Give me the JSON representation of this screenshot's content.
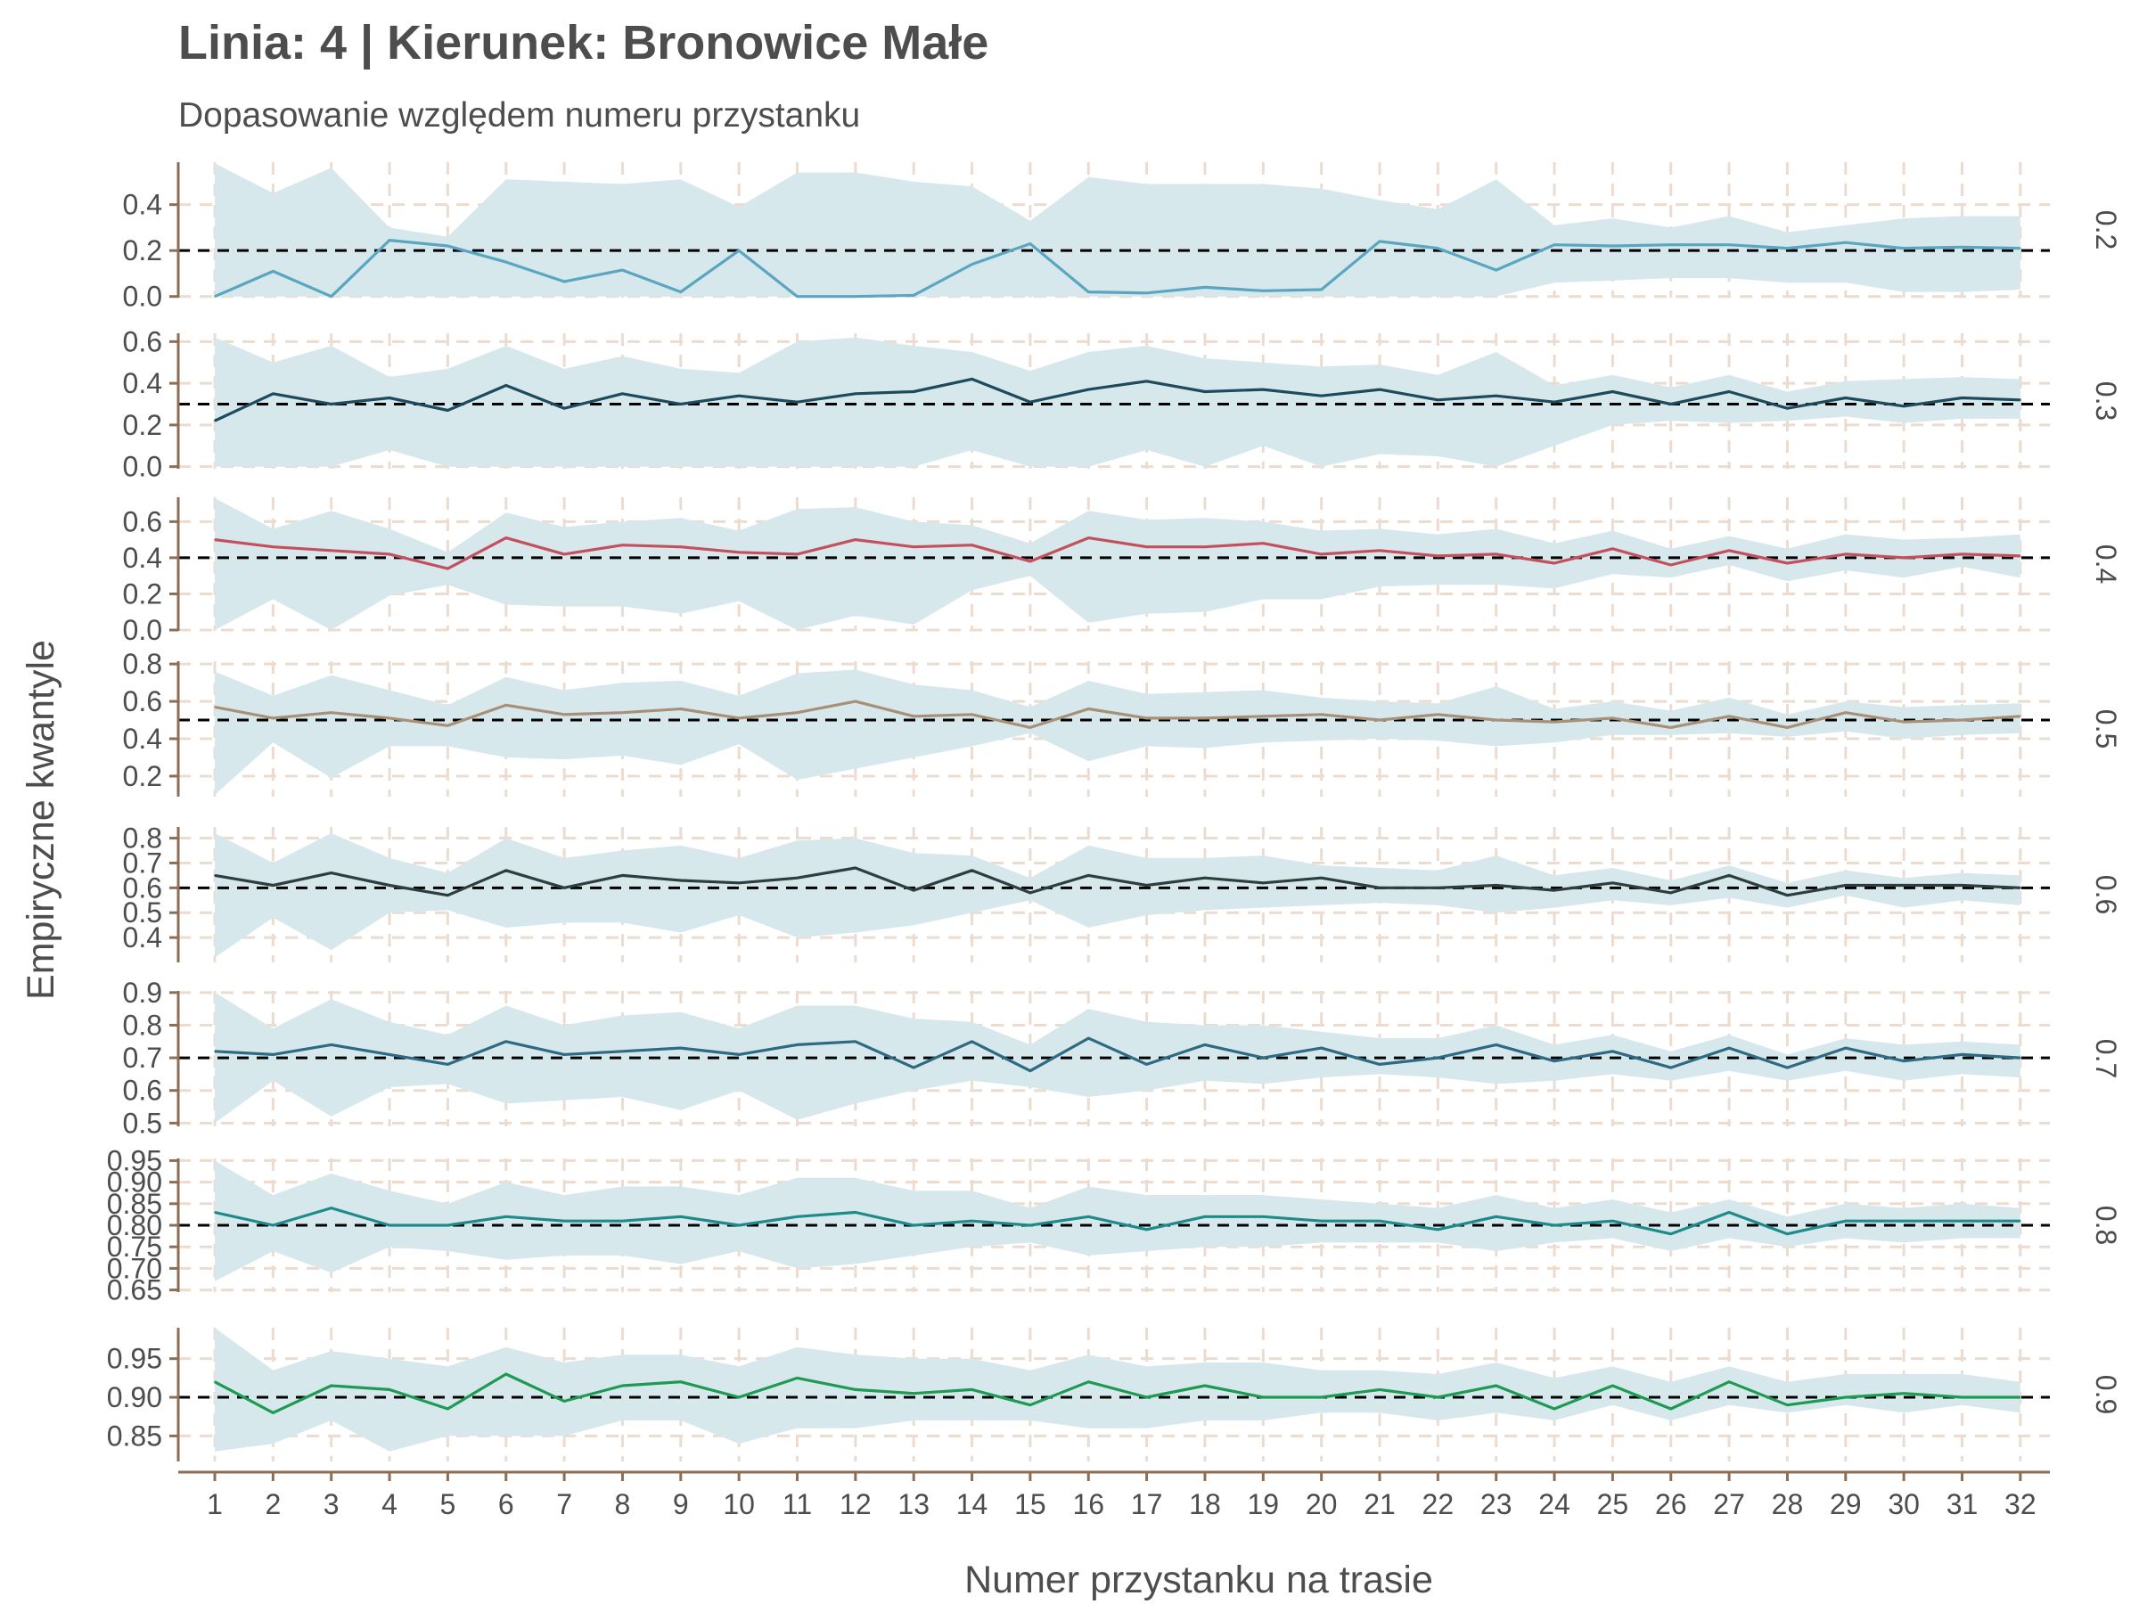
{
  "title": "Linia: 4 | Kierunek: Bronowice Małe",
  "subtitle": "Dopasowanie względem numeru przystanku",
  "colors": {
    "band": "#d6e8ec",
    "axis": "#8b6e55",
    "grid": "#ecdcd0",
    "reference": "#000000",
    "text": "#4d4d4d"
  },
  "chart_data": {
    "type": "line",
    "xlabel": "Numer przystanku na trasie",
    "ylabel": "Empiryczne kwantyle",
    "x": [
      1,
      2,
      3,
      4,
      5,
      6,
      7,
      8,
      9,
      10,
      11,
      12,
      13,
      14,
      15,
      16,
      17,
      18,
      19,
      20,
      21,
      22,
      23,
      24,
      25,
      26,
      27,
      28,
      29,
      30,
      31,
      32
    ],
    "panels": [
      {
        "name": "0.2",
        "reference": 0.2,
        "color": "#5aa6c0",
        "ylim": [
          -0.005,
          0.585
        ],
        "yticks": [
          "0.0",
          "0.2",
          "0.4"
        ],
        "values": [
          0.0,
          0.11,
          0.0,
          0.245,
          0.22,
          0.15,
          0.065,
          0.115,
          0.02,
          0.2,
          0.0,
          0.0,
          0.005,
          0.14,
          0.23,
          0.02,
          0.015,
          0.04,
          0.025,
          0.03,
          0.24,
          0.21,
          0.115,
          0.225,
          0.22,
          0.225,
          0.225,
          0.21,
          0.235,
          0.21,
          0.215,
          0.21
        ],
        "lower": [
          0.0,
          0.0,
          0.0,
          0.0,
          0.0,
          0.0,
          0.0,
          0.0,
          0.0,
          0.0,
          0.0,
          0.0,
          0.0,
          0.0,
          0.0,
          0.0,
          0.0,
          0.0,
          0.0,
          0.0,
          0.0,
          0.0,
          0.0,
          0.06,
          0.07,
          0.08,
          0.08,
          0.06,
          0.06,
          0.02,
          0.02,
          0.03
        ],
        "upper": [
          0.58,
          0.45,
          0.56,
          0.3,
          0.26,
          0.51,
          0.5,
          0.49,
          0.51,
          0.39,
          0.54,
          0.54,
          0.5,
          0.48,
          0.33,
          0.52,
          0.49,
          0.49,
          0.49,
          0.47,
          0.42,
          0.38,
          0.51,
          0.31,
          0.34,
          0.3,
          0.35,
          0.28,
          0.31,
          0.34,
          0.35,
          0.35
        ]
      },
      {
        "name": "0.3",
        "reference": 0.3,
        "color": "#1e4a5c",
        "ylim": [
          -0.01,
          0.64
        ],
        "yticks": [
          "0.0",
          "0.2",
          "0.4",
          "0.6"
        ],
        "values": [
          0.22,
          0.35,
          0.3,
          0.33,
          0.27,
          0.39,
          0.28,
          0.35,
          0.3,
          0.34,
          0.31,
          0.35,
          0.36,
          0.42,
          0.31,
          0.37,
          0.41,
          0.36,
          0.37,
          0.34,
          0.37,
          0.32,
          0.34,
          0.31,
          0.36,
          0.3,
          0.36,
          0.28,
          0.33,
          0.29,
          0.33,
          0.32
        ],
        "lower": [
          0.0,
          0.0,
          0.0,
          0.08,
          0.0,
          0.0,
          0.0,
          0.0,
          0.0,
          0.0,
          0.0,
          0.0,
          0.0,
          0.08,
          0.0,
          0.0,
          0.08,
          0.0,
          0.1,
          0.0,
          0.06,
          0.05,
          0.0,
          0.1,
          0.2,
          0.22,
          0.21,
          0.22,
          0.24,
          0.21,
          0.23,
          0.23
        ],
        "upper": [
          0.62,
          0.5,
          0.58,
          0.43,
          0.47,
          0.58,
          0.47,
          0.53,
          0.47,
          0.45,
          0.6,
          0.62,
          0.58,
          0.55,
          0.46,
          0.55,
          0.58,
          0.52,
          0.5,
          0.48,
          0.49,
          0.44,
          0.55,
          0.39,
          0.44,
          0.38,
          0.44,
          0.36,
          0.41,
          0.42,
          0.43,
          0.42
        ]
      },
      {
        "name": "0.4",
        "reference": 0.4,
        "color": "#c4505e",
        "ylim": [
          -0.005,
          0.735
        ],
        "yticks": [
          "0.0",
          "0.2",
          "0.4",
          "0.6"
        ],
        "values": [
          0.5,
          0.46,
          0.44,
          0.42,
          0.34,
          0.51,
          0.42,
          0.47,
          0.46,
          0.43,
          0.42,
          0.5,
          0.46,
          0.47,
          0.38,
          0.51,
          0.46,
          0.46,
          0.48,
          0.42,
          0.44,
          0.41,
          0.42,
          0.37,
          0.45,
          0.36,
          0.44,
          0.37,
          0.42,
          0.4,
          0.42,
          0.41
        ],
        "lower": [
          0.0,
          0.17,
          0.0,
          0.19,
          0.25,
          0.14,
          0.13,
          0.13,
          0.09,
          0.16,
          0.0,
          0.08,
          0.03,
          0.22,
          0.3,
          0.04,
          0.09,
          0.1,
          0.17,
          0.17,
          0.24,
          0.25,
          0.25,
          0.23,
          0.31,
          0.29,
          0.36,
          0.27,
          0.33,
          0.29,
          0.35,
          0.29
        ],
        "upper": [
          0.73,
          0.56,
          0.66,
          0.56,
          0.43,
          0.65,
          0.57,
          0.6,
          0.62,
          0.55,
          0.67,
          0.68,
          0.6,
          0.58,
          0.48,
          0.66,
          0.61,
          0.62,
          0.6,
          0.55,
          0.56,
          0.53,
          0.56,
          0.48,
          0.55,
          0.45,
          0.52,
          0.45,
          0.53,
          0.5,
          0.51,
          0.53
        ]
      },
      {
        "name": "0.5",
        "reference": 0.5,
        "color": "#a89078",
        "ylim": [
          0.09,
          0.815
        ],
        "yticks": [
          "0.2",
          "0.4",
          "0.6",
          "0.8"
        ],
        "values": [
          0.57,
          0.51,
          0.54,
          0.51,
          0.47,
          0.58,
          0.53,
          0.54,
          0.56,
          0.51,
          0.54,
          0.6,
          0.52,
          0.53,
          0.46,
          0.56,
          0.51,
          0.51,
          0.52,
          0.53,
          0.5,
          0.53,
          0.5,
          0.49,
          0.51,
          0.46,
          0.52,
          0.46,
          0.54,
          0.49,
          0.5,
          0.52
        ],
        "lower": [
          0.1,
          0.38,
          0.19,
          0.36,
          0.36,
          0.3,
          0.29,
          0.31,
          0.26,
          0.37,
          0.18,
          0.24,
          0.3,
          0.36,
          0.43,
          0.28,
          0.36,
          0.35,
          0.38,
          0.39,
          0.4,
          0.39,
          0.36,
          0.38,
          0.42,
          0.42,
          0.43,
          0.41,
          0.44,
          0.4,
          0.42,
          0.43
        ],
        "upper": [
          0.76,
          0.63,
          0.74,
          0.66,
          0.58,
          0.73,
          0.66,
          0.7,
          0.71,
          0.63,
          0.75,
          0.77,
          0.69,
          0.66,
          0.57,
          0.71,
          0.64,
          0.65,
          0.66,
          0.62,
          0.6,
          0.59,
          0.68,
          0.56,
          0.6,
          0.55,
          0.62,
          0.53,
          0.6,
          0.57,
          0.58,
          0.59
        ]
      },
      {
        "name": "0.6",
        "reference": 0.6,
        "color": "#2e3e40",
        "ylim": [
          0.3,
          0.845
        ],
        "yticks": [
          "0.4",
          "0.5",
          "0.6",
          "0.7",
          "0.8"
        ],
        "values": [
          0.65,
          0.61,
          0.66,
          0.61,
          0.57,
          0.67,
          0.6,
          0.65,
          0.63,
          0.62,
          0.64,
          0.68,
          0.59,
          0.67,
          0.58,
          0.65,
          0.61,
          0.64,
          0.62,
          0.64,
          0.6,
          0.6,
          0.61,
          0.59,
          0.62,
          0.58,
          0.65,
          0.57,
          0.61,
          0.61,
          0.61,
          0.6
        ],
        "lower": [
          0.32,
          0.48,
          0.35,
          0.5,
          0.51,
          0.44,
          0.46,
          0.46,
          0.42,
          0.49,
          0.4,
          0.42,
          0.45,
          0.5,
          0.55,
          0.44,
          0.49,
          0.51,
          0.52,
          0.53,
          0.54,
          0.53,
          0.5,
          0.52,
          0.55,
          0.53,
          0.56,
          0.52,
          0.57,
          0.52,
          0.55,
          0.53
        ],
        "upper": [
          0.82,
          0.7,
          0.82,
          0.72,
          0.66,
          0.8,
          0.72,
          0.75,
          0.77,
          0.72,
          0.79,
          0.8,
          0.74,
          0.73,
          0.64,
          0.77,
          0.72,
          0.72,
          0.73,
          0.69,
          0.68,
          0.67,
          0.73,
          0.65,
          0.68,
          0.63,
          0.69,
          0.62,
          0.67,
          0.64,
          0.66,
          0.65
        ]
      },
      {
        "name": "0.7",
        "reference": 0.7,
        "color": "#2e6a82",
        "ylim": [
          0.49,
          0.905
        ],
        "yticks": [
          "0.5",
          "0.6",
          "0.7",
          "0.8",
          "0.9"
        ],
        "values": [
          0.72,
          0.71,
          0.74,
          0.71,
          0.68,
          0.75,
          0.71,
          0.72,
          0.73,
          0.71,
          0.74,
          0.75,
          0.67,
          0.75,
          0.66,
          0.76,
          0.68,
          0.74,
          0.7,
          0.73,
          0.68,
          0.7,
          0.74,
          0.69,
          0.72,
          0.67,
          0.73,
          0.67,
          0.73,
          0.69,
          0.71,
          0.7
        ],
        "lower": [
          0.5,
          0.63,
          0.52,
          0.61,
          0.62,
          0.56,
          0.57,
          0.58,
          0.54,
          0.6,
          0.51,
          0.56,
          0.6,
          0.63,
          0.61,
          0.58,
          0.6,
          0.63,
          0.62,
          0.64,
          0.65,
          0.64,
          0.62,
          0.63,
          0.65,
          0.63,
          0.66,
          0.63,
          0.66,
          0.63,
          0.65,
          0.64
        ],
        "upper": [
          0.9,
          0.79,
          0.88,
          0.81,
          0.77,
          0.86,
          0.8,
          0.83,
          0.84,
          0.79,
          0.86,
          0.86,
          0.82,
          0.81,
          0.74,
          0.85,
          0.81,
          0.8,
          0.8,
          0.78,
          0.76,
          0.76,
          0.8,
          0.74,
          0.77,
          0.72,
          0.77,
          0.71,
          0.76,
          0.74,
          0.75,
          0.74
        ]
      },
      {
        "name": "0.8",
        "reference": 0.8,
        "color": "#1f8a8a",
        "ylim": [
          0.645,
          0.955
        ],
        "yticks": [
          "0.65",
          "0.70",
          "0.75",
          "0.80",
          "0.85",
          "0.90",
          "0.95"
        ],
        "values": [
          0.83,
          0.8,
          0.84,
          0.8,
          0.8,
          0.82,
          0.81,
          0.81,
          0.82,
          0.8,
          0.82,
          0.83,
          0.8,
          0.81,
          0.8,
          0.82,
          0.79,
          0.82,
          0.82,
          0.81,
          0.81,
          0.79,
          0.82,
          0.8,
          0.81,
          0.78,
          0.83,
          0.78,
          0.81,
          0.81,
          0.81,
          0.81
        ],
        "lower": [
          0.67,
          0.74,
          0.69,
          0.75,
          0.74,
          0.72,
          0.73,
          0.73,
          0.71,
          0.74,
          0.7,
          0.71,
          0.73,
          0.75,
          0.76,
          0.73,
          0.74,
          0.75,
          0.75,
          0.76,
          0.76,
          0.76,
          0.74,
          0.76,
          0.77,
          0.74,
          0.77,
          0.75,
          0.77,
          0.76,
          0.77,
          0.77
        ],
        "upper": [
          0.95,
          0.87,
          0.92,
          0.88,
          0.85,
          0.9,
          0.87,
          0.89,
          0.89,
          0.87,
          0.91,
          0.91,
          0.88,
          0.88,
          0.84,
          0.89,
          0.87,
          0.87,
          0.87,
          0.86,
          0.85,
          0.84,
          0.87,
          0.84,
          0.86,
          0.83,
          0.86,
          0.82,
          0.85,
          0.84,
          0.85,
          0.84
        ]
      },
      {
        "name": "0.9",
        "reference": 0.9,
        "color": "#1e9a52",
        "ylim": [
          0.817,
          0.99
        ],
        "yticks": [
          "0.85",
          "0.90",
          "0.95"
        ],
        "values": [
          0.92,
          0.88,
          0.915,
          0.91,
          0.885,
          0.93,
          0.895,
          0.915,
          0.92,
          0.9,
          0.925,
          0.91,
          0.905,
          0.91,
          0.89,
          0.92,
          0.9,
          0.915,
          0.9,
          0.9,
          0.91,
          0.9,
          0.915,
          0.885,
          0.915,
          0.885,
          0.92,
          0.89,
          0.9,
          0.905,
          0.9,
          0.9
        ],
        "lower": [
          0.83,
          0.84,
          0.87,
          0.83,
          0.85,
          0.85,
          0.85,
          0.87,
          0.87,
          0.84,
          0.86,
          0.86,
          0.87,
          0.87,
          0.87,
          0.86,
          0.86,
          0.87,
          0.87,
          0.88,
          0.88,
          0.87,
          0.88,
          0.87,
          0.89,
          0.87,
          0.89,
          0.88,
          0.89,
          0.88,
          0.89,
          0.88
        ],
        "upper": [
          0.99,
          0.935,
          0.96,
          0.95,
          0.94,
          0.965,
          0.945,
          0.955,
          0.955,
          0.94,
          0.965,
          0.955,
          0.95,
          0.95,
          0.935,
          0.955,
          0.94,
          0.945,
          0.945,
          0.935,
          0.935,
          0.93,
          0.945,
          0.925,
          0.94,
          0.92,
          0.94,
          0.92,
          0.93,
          0.93,
          0.93,
          0.92
        ]
      }
    ]
  }
}
